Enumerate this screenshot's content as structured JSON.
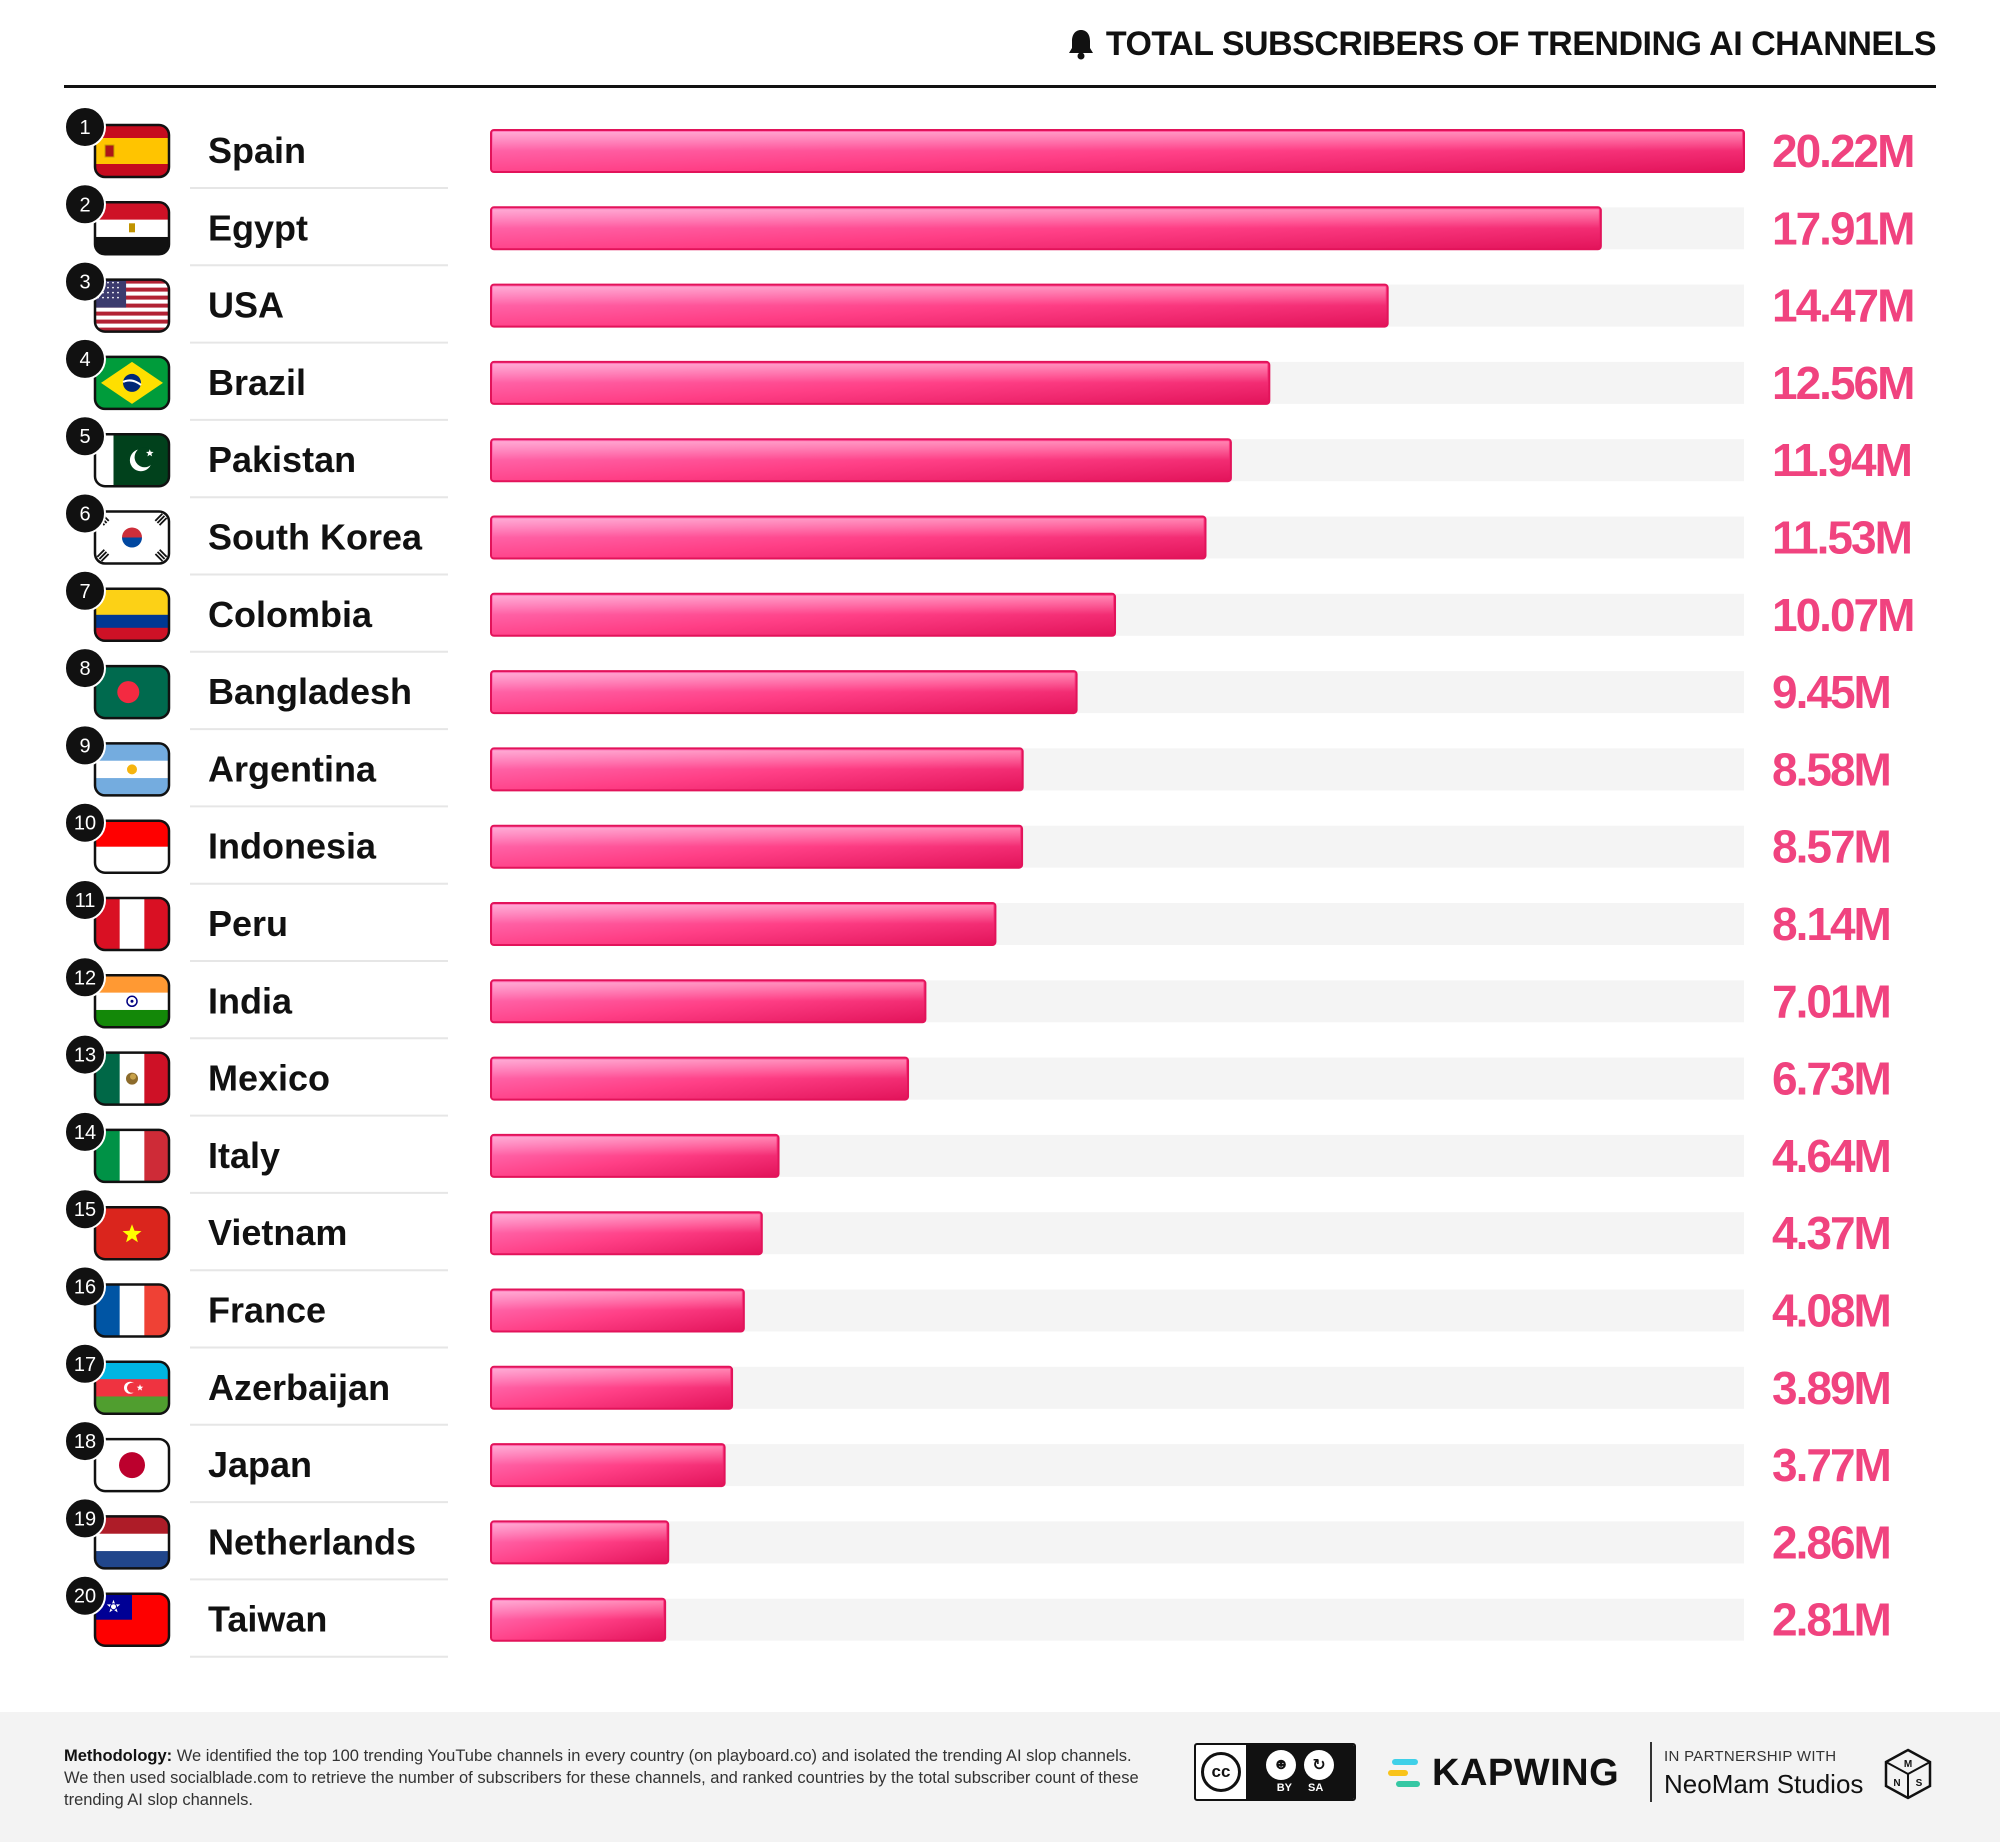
{
  "header": {
    "title": "TOTAL SUBSCRIBERS OF TRENDING AI CHANNELS",
    "icon": "bell-icon"
  },
  "colors": {
    "bar_light": "#ff7ec0",
    "bar_mid": "#ff3f86",
    "bar_dark": "#e2135a",
    "track": "#f4f4f4",
    "value_text": "#f0437f"
  },
  "chart_data": {
    "type": "bar",
    "orientation": "horizontal",
    "title": "TOTAL SUBSCRIBERS OF TRENDING AI CHANNELS",
    "unit": "M",
    "xlim": [
      0,
      20.22
    ],
    "ranks": [
      1,
      2,
      3,
      4,
      5,
      6,
      7,
      8,
      9,
      10,
      11,
      12,
      13,
      14,
      15,
      16,
      17,
      18,
      19,
      20
    ],
    "categories": [
      "Spain",
      "Egypt",
      "USA",
      "Brazil",
      "Pakistan",
      "South Korea",
      "Colombia",
      "Bangladesh",
      "Argentina",
      "Indonesia",
      "Peru",
      "India",
      "Mexico",
      "Italy",
      "Vietnam",
      "France",
      "Azerbaijan",
      "Japan",
      "Netherlands",
      "Taiwan"
    ],
    "values": [
      20.22,
      17.91,
      14.47,
      12.56,
      11.94,
      11.53,
      10.07,
      9.45,
      8.58,
      8.57,
      8.14,
      7.01,
      6.73,
      4.64,
      4.37,
      4.08,
      3.89,
      3.77,
      2.86,
      2.81
    ],
    "value_labels": [
      "20.22M",
      "17.91M",
      "14.47M",
      "12.56M",
      "11.94M",
      "11.53M",
      "10.07M",
      "9.45M",
      "8.58M",
      "8.57M",
      "8.14M",
      "7.01M",
      "6.73M",
      "4.64M",
      "4.37M",
      "4.08M",
      "3.89M",
      "3.77M",
      "2.86M",
      "2.81M"
    ],
    "flags": [
      "spain-flag-icon",
      "egypt-flag-icon",
      "usa-flag-icon",
      "brazil-flag-icon",
      "pakistan-flag-icon",
      "south-korea-flag-icon",
      "colombia-flag-icon",
      "bangladesh-flag-icon",
      "argentina-flag-icon",
      "indonesia-flag-icon",
      "peru-flag-icon",
      "india-flag-icon",
      "mexico-flag-icon",
      "italy-flag-icon",
      "vietnam-flag-icon",
      "france-flag-icon",
      "azerbaijan-flag-icon",
      "japan-flag-icon",
      "netherlands-flag-icon",
      "taiwan-flag-icon"
    ]
  },
  "footer": {
    "methodology_label": "Methodology:",
    "methodology_text": " We identified the top 100 trending YouTube channels in every country (on playboard.co) and isolated the trending AI slop channels. We then used socialblade.com to retrieve the number of subscribers for these channels, and ranked countries by the total subscriber count of these trending AI slop channels.",
    "license": {
      "cc": "cc",
      "by": "BY",
      "sa": "SA"
    },
    "brand": "KAPWING",
    "partner_label": "IN PARTNERSHIP WITH",
    "partner_name": "NeoMam Studios",
    "partner_logo_letters": "NMS"
  }
}
